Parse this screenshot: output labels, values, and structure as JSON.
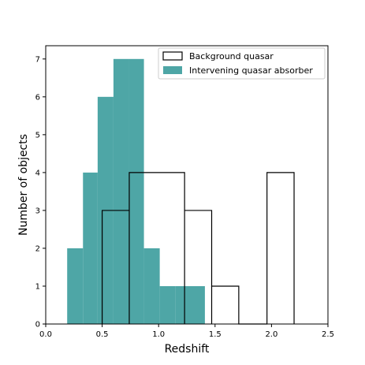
{
  "chart_data": {
    "type": "bar",
    "subtype": "histogram",
    "xlabel": "Redshift",
    "ylabel": "Number of objects",
    "xlim": [
      0,
      2.5
    ],
    "ylim": [
      0,
      7.35
    ],
    "xticks": [
      0.0,
      0.5,
      1.0,
      1.5,
      2.0,
      2.5
    ],
    "xtick_labels": [
      "0.0",
      "0.5",
      "1.0",
      "1.5",
      "2.0",
      "2.5"
    ],
    "yticks": [
      0,
      1,
      2,
      3,
      4,
      5,
      6,
      7
    ],
    "ytick_labels": [
      "0",
      "1",
      "2",
      "3",
      "4",
      "5",
      "6",
      "7"
    ],
    "grid": false,
    "legend_position": "top-right",
    "series": [
      {
        "name": "Intervening quasar absorber",
        "style": "filled",
        "color": "#3b9c9c",
        "bins": [
          {
            "x0": 0.19,
            "x1": 0.33,
            "count": 2
          },
          {
            "x0": 0.33,
            "x1": 0.46,
            "count": 4
          },
          {
            "x0": 0.46,
            "x1": 0.6,
            "count": 6
          },
          {
            "x0": 0.6,
            "x1": 0.74,
            "count": 7
          },
          {
            "x0": 0.74,
            "x1": 0.87,
            "count": 7
          },
          {
            "x0": 0.87,
            "x1": 1.01,
            "count": 2
          },
          {
            "x0": 1.01,
            "x1": 1.15,
            "count": 1
          },
          {
            "x0": 1.15,
            "x1": 1.41,
            "count": 1
          }
        ]
      },
      {
        "name": "Background quasar",
        "style": "step",
        "color": "#000000",
        "bins": [
          {
            "x0": 0.5,
            "x1": 0.74,
            "count": 3
          },
          {
            "x0": 0.74,
            "x1": 1.23,
            "count": 4
          },
          {
            "x0": 1.23,
            "x1": 1.47,
            "count": 3
          },
          {
            "x0": 1.47,
            "x1": 1.71,
            "count": 1
          },
          {
            "x0": 1.71,
            "x1": 1.96,
            "count": 0
          },
          {
            "x0": 1.96,
            "x1": 2.2,
            "count": 4
          }
        ]
      }
    ]
  }
}
